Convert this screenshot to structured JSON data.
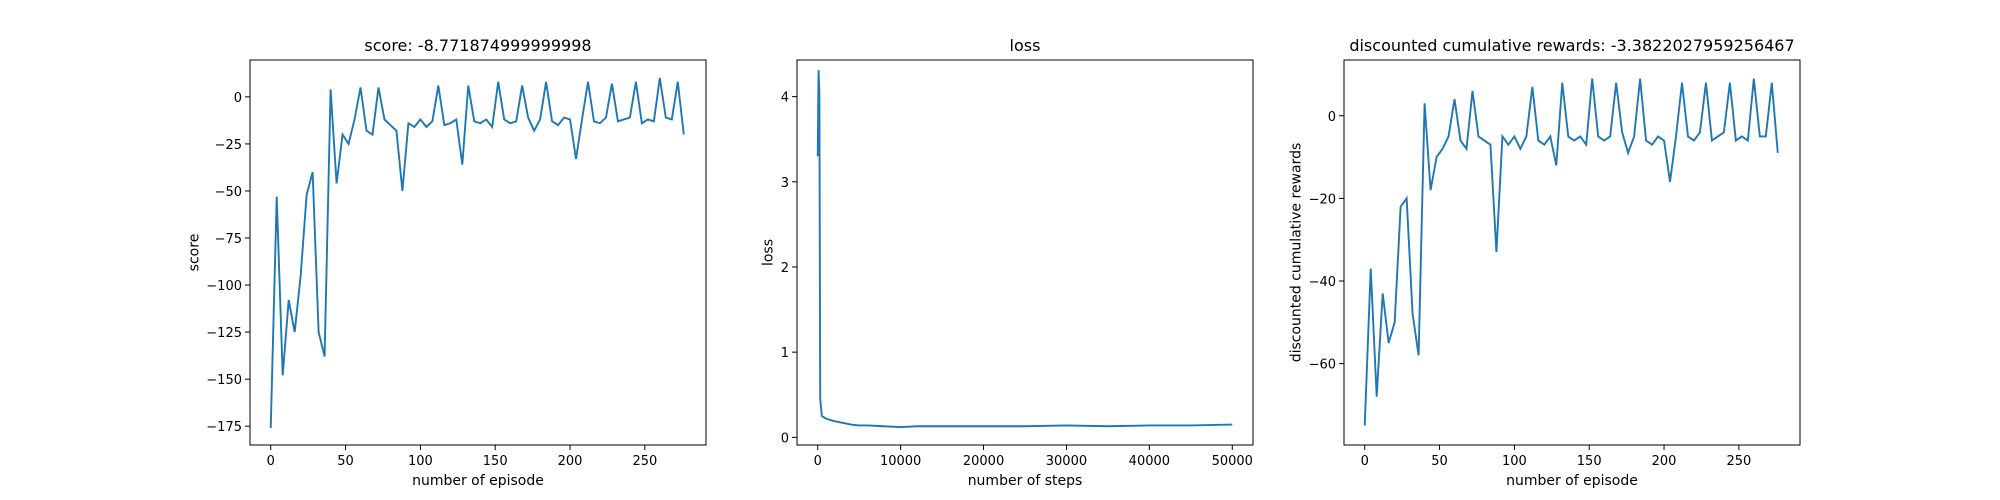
{
  "chart_data": [
    {
      "type": "line",
      "title": "score: -8.771874999999998",
      "xlabel": "number of episode",
      "ylabel": "score",
      "color": "#1f77b4",
      "x": [
        0,
        4,
        8,
        12,
        16,
        20,
        24,
        28,
        32,
        36,
        40,
        44,
        48,
        52,
        56,
        60,
        64,
        68,
        72,
        76,
        80,
        84,
        88,
        92,
        96,
        100,
        104,
        108,
        112,
        116,
        120,
        124,
        128,
        132,
        136,
        140,
        144,
        148,
        152,
        156,
        160,
        164,
        168,
        172,
        176,
        180,
        184,
        188,
        192,
        196,
        200,
        204,
        208,
        212,
        216,
        220,
        224,
        228,
        232,
        236,
        240,
        244,
        248,
        252,
        256,
        260,
        264,
        268,
        272,
        276
      ],
      "values": [
        -176,
        -53,
        -148,
        -108,
        -125,
        -95,
        -52,
        -40,
        -125,
        -138,
        4,
        -46,
        -20,
        -25,
        -12,
        5,
        -18,
        -20,
        5,
        -12,
        -15,
        -18,
        -50,
        -14,
        -16,
        -12,
        -16,
        -13,
        6,
        -15,
        -14,
        -12,
        -36,
        6,
        -13,
        -14,
        -12,
        -16,
        8,
        -12,
        -14,
        -13,
        6,
        -11,
        -18,
        -12,
        8,
        -13,
        -15,
        -11,
        -12,
        -33,
        -12,
        8,
        -13,
        -14,
        -11,
        7,
        -13,
        -12,
        -11,
        8,
        -14,
        -12,
        -13,
        10,
        -11,
        -12,
        8,
        -20
      ],
      "xlim": [
        -13.85,
        290.85
      ],
      "ylim": [
        -185,
        19.6
      ],
      "xticks": [
        0,
        50,
        100,
        150,
        200,
        250
      ],
      "yticks": [
        {
          "value": -175,
          "label": "−175"
        },
        {
          "value": -150,
          "label": "−150"
        },
        {
          "value": -125,
          "label": "−125"
        },
        {
          "value": -100,
          "label": "−100"
        },
        {
          "value": -75,
          "label": "−75"
        },
        {
          "value": -50,
          "label": "−50"
        },
        {
          "value": -25,
          "label": "−25"
        },
        0
      ]
    },
    {
      "type": "line",
      "title": "loss",
      "xlabel": "number of steps",
      "ylabel": "loss",
      "color": "#1f77b4",
      "x": [
        0,
        100,
        200,
        300,
        500,
        1000,
        2000,
        3000,
        4000,
        5000,
        6000,
        8000,
        10000,
        12000,
        15000,
        20000,
        25000,
        30000,
        35000,
        40000,
        45000,
        50000
      ],
      "values": [
        3.3,
        4.31,
        4.05,
        0.45,
        0.25,
        0.22,
        0.19,
        0.17,
        0.15,
        0.14,
        0.14,
        0.13,
        0.12,
        0.13,
        0.13,
        0.13,
        0.13,
        0.14,
        0.13,
        0.14,
        0.14,
        0.15
      ],
      "xlim": [
        -2500,
        52500
      ],
      "ylim": [
        -0.09,
        4.43
      ],
      "xticks": [
        0,
        10000,
        20000,
        30000,
        40000,
        50000
      ],
      "yticks": [
        0,
        1,
        2,
        3,
        4
      ]
    },
    {
      "type": "line",
      "title": "discounted cumulative rewards: -3.3822027959256467",
      "xlabel": "number of episode",
      "ylabel": "discounted cumulative rewards",
      "color": "#1f77b4",
      "x": [
        0,
        4,
        8,
        12,
        16,
        20,
        24,
        28,
        32,
        36,
        40,
        44,
        48,
        52,
        56,
        60,
        64,
        68,
        72,
        76,
        80,
        84,
        88,
        92,
        96,
        100,
        104,
        108,
        112,
        116,
        120,
        124,
        128,
        132,
        136,
        140,
        144,
        148,
        152,
        156,
        160,
        164,
        168,
        172,
        176,
        180,
        184,
        188,
        192,
        196,
        200,
        204,
        208,
        212,
        216,
        220,
        224,
        228,
        232,
        236,
        240,
        244,
        248,
        252,
        256,
        260,
        264,
        268,
        272,
        276
      ],
      "values": [
        -75,
        -37,
        -68,
        -43,
        -55,
        -50,
        -22,
        -20,
        -48,
        -58,
        3,
        -18,
        -10,
        -8,
        -5,
        4,
        -6,
        -8,
        6,
        -5,
        -6,
        -7,
        -33,
        -5,
        -7,
        -5,
        -8,
        -5,
        7,
        -6,
        -7,
        -5,
        -12,
        8,
        -5,
        -6,
        -5,
        -7,
        9,
        -5,
        -6,
        -5,
        8,
        -4,
        -9,
        -5,
        9,
        -6,
        -7,
        -5,
        -6,
        -16,
        -5,
        8,
        -5,
        -6,
        -4,
        8,
        -6,
        -5,
        -4,
        8,
        -6,
        -5,
        -6,
        9,
        -5,
        -5,
        8,
        -9
      ],
      "xlim": [
        -13.85,
        290.85
      ],
      "ylim": [
        -79.7,
        13.5
      ],
      "xticks": [
        0,
        50,
        100,
        150,
        200,
        250
      ],
      "yticks": [
        {
          "value": -60,
          "label": "−60"
        },
        {
          "value": -40,
          "label": "−40"
        },
        {
          "value": -20,
          "label": "−20"
        },
        0
      ]
    }
  ]
}
